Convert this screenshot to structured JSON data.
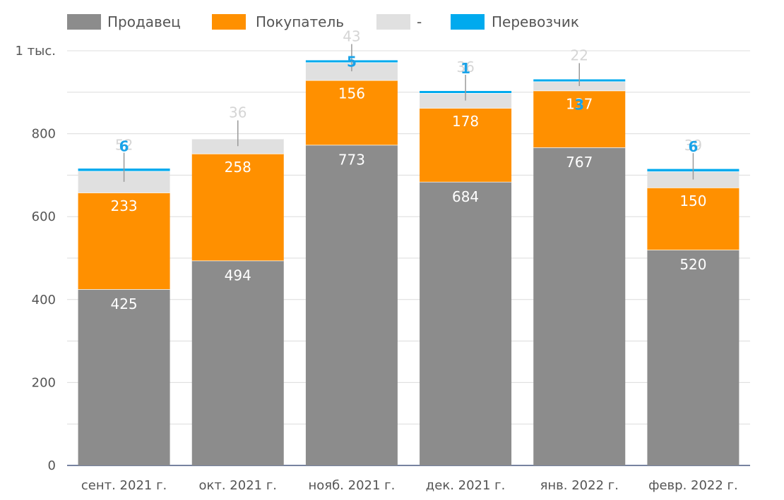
{
  "chart_data": {
    "type": "bar",
    "stacked": true,
    "categories": [
      "сент. 2021 г.",
      "окт. 2021 г.",
      "нояб. 2021 г.",
      "дек. 2021 г.",
      "янв. 2022 г.",
      "февр. 2022 г."
    ],
    "series": [
      {
        "name": "Продавец",
        "color": "#8c8c8c",
        "values": [
          425,
          494,
          773,
          684,
          767,
          520
        ]
      },
      {
        "name": "Покупатель",
        "color": "#ff9000",
        "values": [
          233,
          258,
          156,
          178,
          137,
          150
        ]
      },
      {
        "name": "-",
        "color": "#e0e0e0",
        "values": [
          52,
          36,
          43,
          36,
          22,
          39
        ]
      },
      {
        "name": "Перевозчик",
        "color": "#00aaee",
        "values": [
          6,
          0,
          5,
          1,
          3,
          6
        ]
      }
    ],
    "ylim": [
      0,
      1000
    ],
    "yticks": [
      {
        "value": 0,
        "label": "0"
      },
      {
        "value": 200,
        "label": "200"
      },
      {
        "value": 400,
        "label": "400"
      },
      {
        "value": 600,
        "label": "600"
      },
      {
        "value": 800,
        "label": "800"
      },
      {
        "value": 1000,
        "label": "1 тыс."
      }
    ],
    "grid": true,
    "legend": "top-left"
  }
}
